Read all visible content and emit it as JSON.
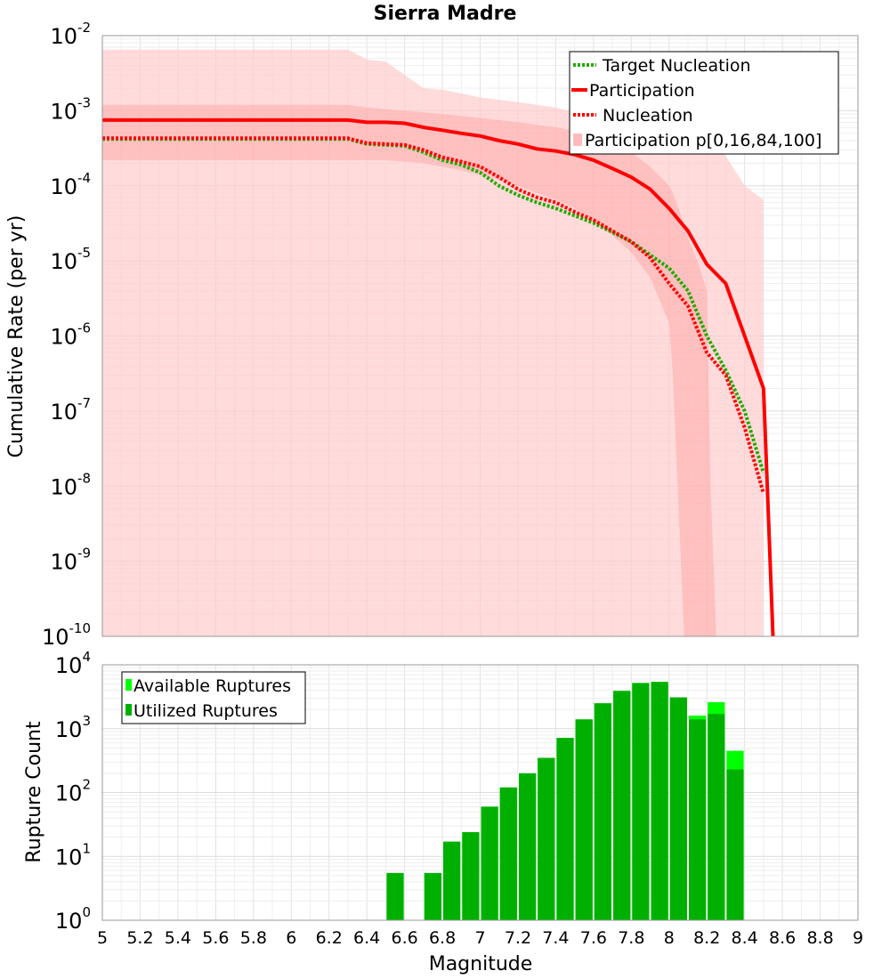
{
  "title": "Sierra Madre",
  "colors": {
    "participation": "#ff0000",
    "nucleation": "#ff0000",
    "target_nucleation": "#22aa00",
    "band_outer": "#ffc8c8",
    "band_inner": "#ffaaaa",
    "available": "#00ff00",
    "utilized": "#00b000"
  },
  "chart_data": [
    {
      "type": "line",
      "xlabel": "Magnitude",
      "ylabel": "Cumulative Rate (per yr)",
      "xlim": [
        5,
        9
      ],
      "ylim": [
        1e-10,
        0.01
      ],
      "y_scale": "log",
      "grid": true,
      "legend_position": "top-right",
      "x_ticks": [
        "5",
        "5.2",
        "5.4",
        "5.6",
        "5.8",
        "6",
        "6.2",
        "6.4",
        "6.6",
        "6.8",
        "7",
        "7.2",
        "7.4",
        "7.6",
        "7.8",
        "8",
        "8.2",
        "8.4",
        "8.6",
        "8.8",
        "9"
      ],
      "y_tick_mantissa": [
        "10",
        "10",
        "10",
        "10",
        "10",
        "10",
        "10",
        "10",
        "10"
      ],
      "y_tick_exponent": [
        "-10",
        "-9",
        "-8",
        "-7",
        "-6",
        "-5",
        "-4",
        "-3",
        "-2"
      ],
      "legend": [
        "Target Nucleation",
        "Participation",
        "Nucleation",
        "Participation p[0,16,84,100]"
      ],
      "series": [
        {
          "name": "Target Nucleation",
          "style": "dotted",
          "x": [
            5,
            6.3,
            6.4,
            6.5,
            6.6,
            6.7,
            6.8,
            6.9,
            7.0,
            7.1,
            7.2,
            7.3,
            7.4,
            7.5,
            7.6,
            7.7,
            7.8,
            7.9,
            8.0,
            8.1,
            8.2,
            8.3,
            8.4,
            8.5
          ],
          "y": [
            0.00042,
            0.00042,
            0.00036,
            0.00035,
            0.00034,
            0.00028,
            0.00022,
            0.00019,
            0.00015,
            0.0001,
            7.5e-05,
            6e-05,
            5e-05,
            4e-05,
            3.2e-05,
            2.4e-05,
            1.8e-05,
            1.2e-05,
            8e-06,
            4e-06,
            1e-06,
            3.5e-07,
            1e-07,
            1.5e-08
          ]
        },
        {
          "name": "Participation",
          "style": "solid",
          "x": [
            5,
            6.3,
            6.4,
            6.5,
            6.6,
            6.7,
            6.8,
            6.9,
            7.0,
            7.1,
            7.2,
            7.3,
            7.4,
            7.5,
            7.6,
            7.7,
            7.8,
            7.9,
            8.0,
            8.1,
            8.2,
            8.3,
            8.4,
            8.5,
            8.52,
            8.55
          ],
          "y": [
            0.00075,
            0.00075,
            0.0007,
            0.0007,
            0.00068,
            0.0006,
            0.00055,
            0.0005,
            0.00046,
            0.0004,
            0.00036,
            0.00031,
            0.00029,
            0.00026,
            0.00022,
            0.00017,
            0.00013,
            9e-05,
            5e-05,
            2.5e-05,
            9e-06,
            5e-06,
            1e-06,
            2e-07,
            1e-08,
            1e-10
          ]
        },
        {
          "name": "Nucleation",
          "style": "dotted",
          "x": [
            5,
            6.3,
            6.4,
            6.5,
            6.6,
            6.7,
            6.8,
            6.9,
            7.0,
            7.1,
            7.2,
            7.3,
            7.4,
            7.5,
            7.6,
            7.7,
            7.8,
            7.9,
            8.0,
            8.1,
            8.2,
            8.3,
            8.4,
            8.5
          ],
          "y": [
            0.00043,
            0.00043,
            0.00037,
            0.00036,
            0.00035,
            0.0003,
            0.00024,
            0.00021,
            0.00018,
            0.00013,
            9e-05,
            7e-05,
            6e-05,
            4.5e-05,
            3.5e-05,
            2.5e-05,
            1.8e-05,
            1.1e-05,
            5e-06,
            2.5e-06,
            6e-07,
            3e-07,
            6e-08,
            8e-09
          ]
        }
      ],
      "bands": [
        {
          "name": "Participation p[0,100]",
          "x": [
            5,
            6.3,
            6.4,
            6.5,
            6.6,
            6.7,
            6.8,
            6.9,
            7.0,
            7.1,
            7.2,
            7.3,
            7.4,
            7.5,
            7.6,
            7.7,
            7.8,
            7.9,
            8.0,
            8.1,
            8.2,
            8.3,
            8.4,
            8.5
          ],
          "lower": [
            1e-10,
            1e-10,
            1e-10,
            1e-10,
            1e-10,
            1e-10,
            1e-10,
            1e-10,
            1e-10,
            1e-10,
            1e-10,
            1e-10,
            1e-10,
            1e-10,
            1e-10,
            1e-10,
            1e-10,
            1e-10,
            1e-10,
            1e-10,
            1e-10,
            1e-10,
            1e-10,
            1e-10
          ],
          "upper": [
            0.0065,
            0.0065,
            0.0048,
            0.0045,
            0.003,
            0.002,
            0.0019,
            0.0017,
            0.0015,
            0.0014,
            0.0013,
            0.0012,
            0.0011,
            0.00095,
            0.00085,
            0.0008,
            0.00075,
            0.0007,
            0.0006,
            0.0005,
            0.00045,
            0.00025,
            0.0001,
            6.5e-05
          ]
        },
        {
          "name": "Participation p[16,84]",
          "x": [
            5,
            6.3,
            6.4,
            6.5,
            6.6,
            6.7,
            6.8,
            6.9,
            7.0,
            7.1,
            7.2,
            7.3,
            7.4,
            7.5,
            7.6,
            7.7,
            7.8,
            7.9,
            8.0,
            8.02,
            8.05,
            8.08,
            8.1,
            8.15,
            8.2,
            8.22,
            8.25
          ],
          "lower": [
            0.00022,
            0.00022,
            0.00022,
            0.00022,
            0.00021,
            0.0002,
            0.00018,
            0.00016,
            0.00014,
            0.00012,
            0.0001,
            8e-05,
            6.5e-05,
            5e-05,
            3.5e-05,
            2.2e-05,
            1.3e-05,
            6e-06,
            1.5e-06,
            3e-07,
            5e-09,
            1e-10,
            1e-10,
            1e-10,
            1e-10,
            1e-10,
            1e-10
          ],
          "upper": [
            0.0012,
            0.0012,
            0.0011,
            0.00105,
            0.001,
            0.00095,
            0.0009,
            0.00085,
            0.0008,
            0.00075,
            0.0007,
            0.00065,
            0.0006,
            0.00055,
            0.00048,
            0.0004,
            0.00028,
            0.00018,
            0.0001,
            8e-05,
            5e-05,
            3e-05,
            2e-05,
            1e-05,
            4e-06,
            1e-08,
            1e-10
          ]
        }
      ]
    },
    {
      "type": "bar",
      "xlabel": "Magnitude",
      "ylabel": "Rupture Count",
      "xlim": [
        5,
        9
      ],
      "ylim": [
        1,
        10000
      ],
      "y_scale": "log",
      "grid": true,
      "legend_position": "top-left",
      "y_tick_mantissa": [
        "10",
        "10",
        "10",
        "10",
        "10"
      ],
      "y_tick_exponent": [
        "0",
        "1",
        "2",
        "3",
        "4"
      ],
      "legend": [
        "Available Ruptures",
        "Utilized Ruptures"
      ],
      "x_bin_starts": [
        6.5,
        6.7,
        6.8,
        6.9,
        7.0,
        7.1,
        7.2,
        7.3,
        7.4,
        7.5,
        7.6,
        7.7,
        7.8,
        7.9,
        8.0,
        8.1,
        8.2,
        8.3
      ],
      "series": [
        {
          "name": "Available Ruptures",
          "values": [
            5.5,
            5.5,
            17,
            24,
            60,
            120,
            200,
            350,
            720,
            1400,
            2500,
            3900,
            5200,
            5400,
            3100,
            1600,
            2600,
            450
          ]
        },
        {
          "name": "Utilized Ruptures",
          "values": [
            5.5,
            5.5,
            17,
            24,
            60,
            120,
            200,
            350,
            720,
            1400,
            2500,
            3900,
            5200,
            5400,
            3100,
            1400,
            1700,
            230
          ]
        }
      ]
    }
  ]
}
